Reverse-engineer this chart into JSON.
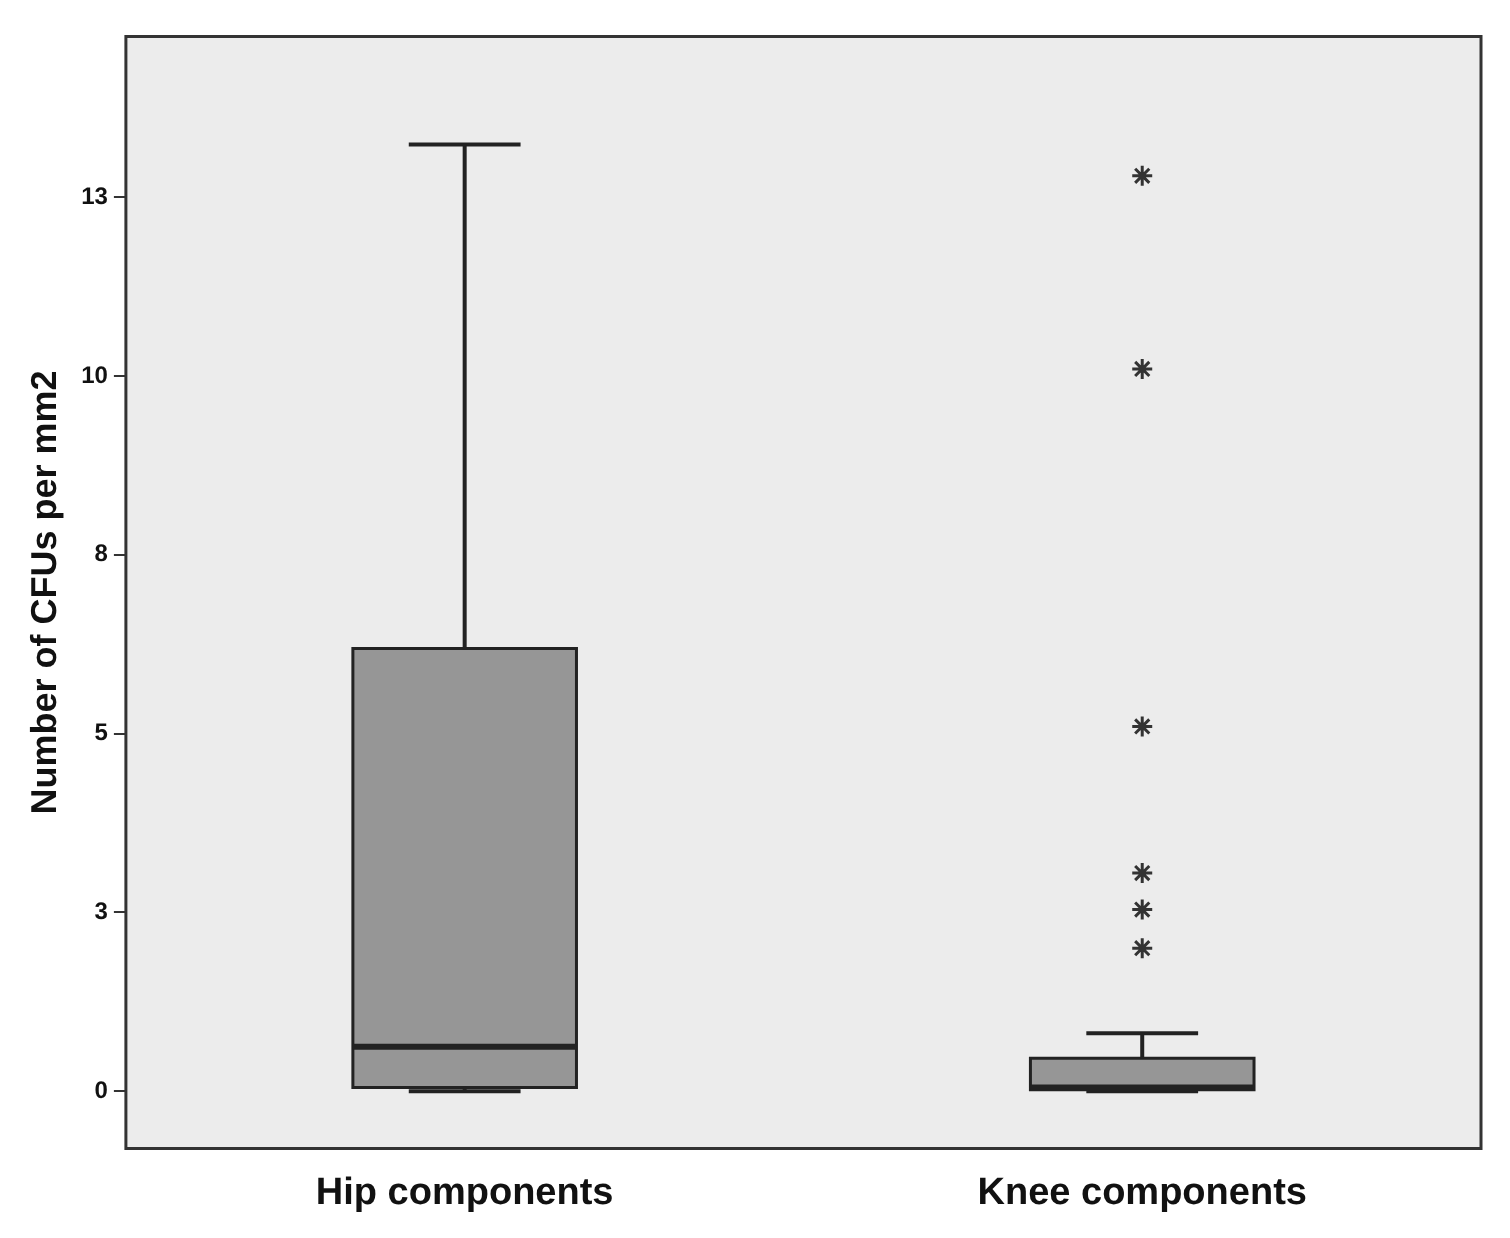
{
  "chart_data": {
    "type": "box",
    "ylabel": "Number of CFUs per mm2",
    "categories": [
      "Hip components",
      "Knee components"
    ],
    "boxes": [
      {
        "low": 0,
        "q1": 0.05,
        "median": 0.62,
        "q3": 6.19,
        "high": 13.24
      },
      {
        "low": 0,
        "q1": 0.02,
        "median": 0.05,
        "q3": 0.46,
        "high": 0.81,
        "outliers": [
          12.8,
          10.1,
          5.1,
          3.05,
          2.54,
          2.0
        ]
      }
    ],
    "color": "#969696",
    "marker": "star",
    "ylim": [
      -0.8,
      14.75
    ],
    "yticks": [
      0,
      {
        "value": 2.5,
        "label": "3"
      },
      5,
      {
        "value": 7.5,
        "label": "8"
      },
      10,
      {
        "value": 12.5,
        "label": "13"
      }
    ],
    "grid": false,
    "legend": false
  }
}
